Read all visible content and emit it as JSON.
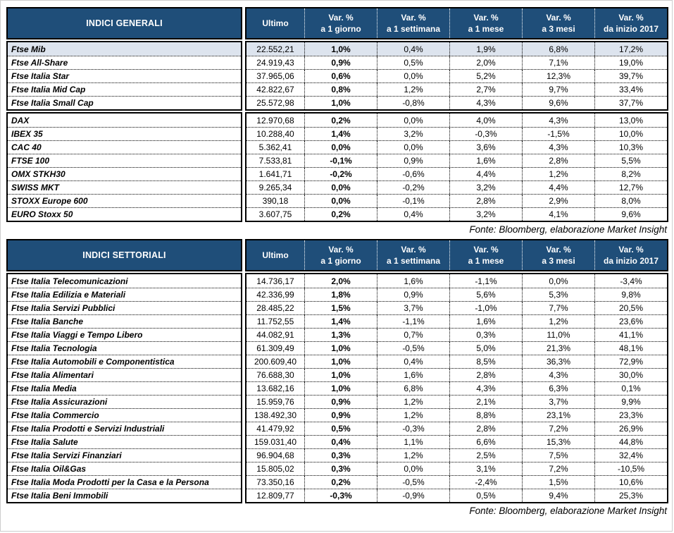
{
  "colors": {
    "header_bg": "#1f4e79",
    "header_text": "#ffffff",
    "highlight_row_bg": "#dde4ee",
    "border": "#000000"
  },
  "header": {
    "ultimo": "Ultimo",
    "var_label": "Var. %",
    "periods": [
      "a 1 giorno",
      "a 1 settimana",
      "a 1 mese",
      "a 3 mesi",
      "da inizio 2017"
    ]
  },
  "source_note": "Fonte: Bloomberg, elaborazione Market Insight",
  "tables": [
    {
      "title": "INDICI GENERALI",
      "groups": [
        {
          "rows": [
            {
              "name": "Ftse Mib",
              "highlight": true,
              "values": [
                "22.552,21",
                "1,0%",
                "0,4%",
                "1,9%",
                "6,8%",
                "17,2%"
              ]
            },
            {
              "name": "Ftse All-Share",
              "highlight": false,
              "values": [
                "24.919,43",
                "0,9%",
                "0,5%",
                "2,0%",
                "7,1%",
                "19,0%"
              ]
            },
            {
              "name": "Ftse Italia Star",
              "highlight": false,
              "values": [
                "37.965,06",
                "0,6%",
                "0,0%",
                "5,2%",
                "12,3%",
                "39,7%"
              ]
            },
            {
              "name": "Ftse Italia Mid Cap",
              "highlight": false,
              "values": [
                "42.822,67",
                "0,8%",
                "1,2%",
                "2,7%",
                "9,7%",
                "33,4%"
              ]
            },
            {
              "name": "Ftse Italia Small Cap",
              "highlight": false,
              "values": [
                "25.572,98",
                "1,0%",
                "-0,8%",
                "4,3%",
                "9,6%",
                "37,7%"
              ]
            }
          ]
        },
        {
          "rows": [
            {
              "name": "DAX",
              "highlight": false,
              "values": [
                "12.970,68",
                "0,2%",
                "0,0%",
                "4,0%",
                "4,3%",
                "13,0%"
              ]
            },
            {
              "name": "IBEX 35",
              "highlight": false,
              "values": [
                "10.288,40",
                "1,4%",
                "3,2%",
                "-0,3%",
                "-1,5%",
                "10,0%"
              ]
            },
            {
              "name": "CAC 40",
              "highlight": false,
              "values": [
                "5.362,41",
                "0,0%",
                "0,0%",
                "3,6%",
                "4,3%",
                "10,3%"
              ]
            },
            {
              "name": "FTSE 100",
              "highlight": false,
              "values": [
                "7.533,81",
                "-0,1%",
                "0,9%",
                "1,6%",
                "2,8%",
                "5,5%"
              ]
            },
            {
              "name": "OMX STKH30",
              "highlight": false,
              "values": [
                "1.641,71",
                "-0,2%",
                "-0,6%",
                "4,4%",
                "1,2%",
                "8,2%"
              ]
            },
            {
              "name": "SWISS MKT",
              "highlight": false,
              "values": [
                "9.265,34",
                "0,0%",
                "-0,2%",
                "3,2%",
                "4,4%",
                "12,7%"
              ]
            },
            {
              "name": "STOXX Europe 600",
              "highlight": false,
              "values": [
                "390,18",
                "0,0%",
                "-0,1%",
                "2,8%",
                "2,9%",
                "8,0%"
              ]
            },
            {
              "name": "EURO Stoxx 50",
              "highlight": false,
              "values": [
                "3.607,75",
                "0,2%",
                "0,4%",
                "3,2%",
                "4,1%",
                "9,6%"
              ]
            }
          ]
        }
      ]
    },
    {
      "title": "INDICI SETTORIALI",
      "groups": [
        {
          "rows": [
            {
              "name": "Ftse Italia Telecomunicazioni",
              "highlight": false,
              "values": [
                "14.736,17",
                "2,0%",
                "1,6%",
                "-1,1%",
                "0,0%",
                "-3,4%"
              ]
            },
            {
              "name": "Ftse Italia Edilizia e Materiali",
              "highlight": false,
              "values": [
                "42.336,99",
                "1,8%",
                "0,9%",
                "5,6%",
                "5,3%",
                "9,8%"
              ]
            },
            {
              "name": "Ftse Italia Servizi Pubblici",
              "highlight": false,
              "values": [
                "28.485,22",
                "1,5%",
                "3,7%",
                "-1,0%",
                "7,7%",
                "20,5%"
              ]
            },
            {
              "name": "Ftse Italia Banche",
              "highlight": false,
              "values": [
                "11.752,55",
                "1,4%",
                "-1,1%",
                "1,6%",
                "1,2%",
                "23,6%"
              ]
            },
            {
              "name": "Ftse Italia Viaggi e Tempo Libero",
              "highlight": false,
              "values": [
                "44.082,91",
                "1,3%",
                "0,7%",
                "0,3%",
                "11,0%",
                "41,1%"
              ]
            },
            {
              "name": "Ftse Italia Tecnologia",
              "highlight": false,
              "values": [
                "61.309,49",
                "1,0%",
                "-0,5%",
                "5,0%",
                "21,3%",
                "48,1%"
              ]
            },
            {
              "name": "Ftse Italia Automobili e Componentistica",
              "highlight": false,
              "values": [
                "200.609,40",
                "1,0%",
                "0,4%",
                "8,5%",
                "36,3%",
                "72,9%"
              ]
            },
            {
              "name": "Ftse Italia Alimentari",
              "highlight": false,
              "values": [
                "76.688,30",
                "1,0%",
                "1,6%",
                "2,8%",
                "4,3%",
                "30,0%"
              ]
            },
            {
              "name": "Ftse Italia Media",
              "highlight": false,
              "values": [
                "13.682,16",
                "1,0%",
                "6,8%",
                "4,3%",
                "6,3%",
                "0,1%"
              ]
            },
            {
              "name": "Ftse Italia Assicurazioni",
              "highlight": false,
              "values": [
                "15.959,76",
                "0,9%",
                "1,2%",
                "2,1%",
                "3,7%",
                "9,9%"
              ]
            },
            {
              "name": "Ftse Italia Commercio",
              "highlight": false,
              "values": [
                "138.492,30",
                "0,9%",
                "1,2%",
                "8,8%",
                "23,1%",
                "23,3%"
              ]
            },
            {
              "name": "Ftse Italia Prodotti e Servizi Industriali",
              "highlight": false,
              "values": [
                "41.479,92",
                "0,5%",
                "-0,3%",
                "2,8%",
                "7,2%",
                "26,9%"
              ]
            },
            {
              "name": "Ftse Italia Salute",
              "highlight": false,
              "values": [
                "159.031,40",
                "0,4%",
                "1,1%",
                "6,6%",
                "15,3%",
                "44,8%"
              ]
            },
            {
              "name": "Ftse Italia Servizi Finanziari",
              "highlight": false,
              "values": [
                "96.904,68",
                "0,3%",
                "1,2%",
                "2,5%",
                "7,5%",
                "32,4%"
              ]
            },
            {
              "name": "Ftse Italia Oil&Gas",
              "highlight": false,
              "values": [
                "15.805,02",
                "0,3%",
                "0,0%",
                "3,1%",
                "7,2%",
                "-10,5%"
              ]
            },
            {
              "name": "Ftse Italia Moda Prodotti per la Casa e la Persona",
              "highlight": false,
              "values": [
                "73.350,16",
                "0,2%",
                "-0,5%",
                "-2,4%",
                "1,5%",
                "10,6%"
              ]
            },
            {
              "name": "Ftse Italia Beni Immobili",
              "highlight": false,
              "values": [
                "12.809,77",
                "-0,3%",
                "-0,9%",
                "0,5%",
                "9,4%",
                "25,3%"
              ]
            }
          ]
        }
      ]
    }
  ]
}
